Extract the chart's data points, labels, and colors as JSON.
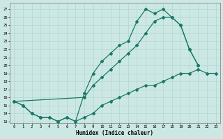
{
  "xlabel": "Humidex (Indice chaleur)",
  "xlim": [
    -0.5,
    23.5
  ],
  "ylim": [
    12.8,
    27.8
  ],
  "yticks": [
    13,
    14,
    15,
    16,
    17,
    18,
    19,
    20,
    21,
    22,
    23,
    24,
    25,
    26,
    27
  ],
  "xticks": [
    0,
    1,
    2,
    3,
    4,
    5,
    6,
    7,
    8,
    9,
    10,
    11,
    12,
    13,
    14,
    15,
    16,
    17,
    18,
    19,
    20,
    21,
    22,
    23
  ],
  "bg_color": "#cce8e4",
  "line_color": "#1a7868",
  "grid_color": "#b8d8d4",
  "curve1_x": [
    0,
    1,
    2,
    3,
    4,
    5,
    6,
    7,
    8,
    9,
    10,
    11,
    12,
    13,
    14,
    15,
    16,
    17,
    18,
    19,
    20,
    21
  ],
  "curve1_y": [
    15.5,
    15.0,
    14.0,
    13.5,
    13.5,
    13.0,
    13.5,
    13.0,
    16.5,
    19.0,
    20.5,
    21.5,
    22.5,
    23.0,
    25.5,
    27.0,
    26.5,
    27.0,
    26.0,
    25.0,
    22.0,
    20.0
  ],
  "curve2_x": [
    0,
    8,
    9,
    10,
    11,
    12,
    13,
    14,
    15,
    16,
    17,
    18,
    19,
    20,
    21
  ],
  "curve2_y": [
    15.5,
    16.0,
    17.5,
    18.5,
    19.5,
    20.5,
    21.5,
    22.5,
    24.0,
    25.5,
    26.0,
    26.0,
    25.0,
    22.0,
    20.0
  ],
  "curve3_x": [
    0,
    1,
    2,
    3,
    4,
    5,
    6,
    7,
    8,
    9,
    10,
    11,
    12,
    13,
    14,
    15,
    16,
    17,
    18,
    19,
    20,
    21,
    22,
    23
  ],
  "curve3_y": [
    15.5,
    15.0,
    14.0,
    13.5,
    13.5,
    13.0,
    13.5,
    13.0,
    13.5,
    14.0,
    15.0,
    15.5,
    16.0,
    16.5,
    17.0,
    17.5,
    17.5,
    18.0,
    18.5,
    19.0,
    19.0,
    19.5,
    19.0,
    19.0
  ],
  "lw": 0.9,
  "ms": 2.0
}
